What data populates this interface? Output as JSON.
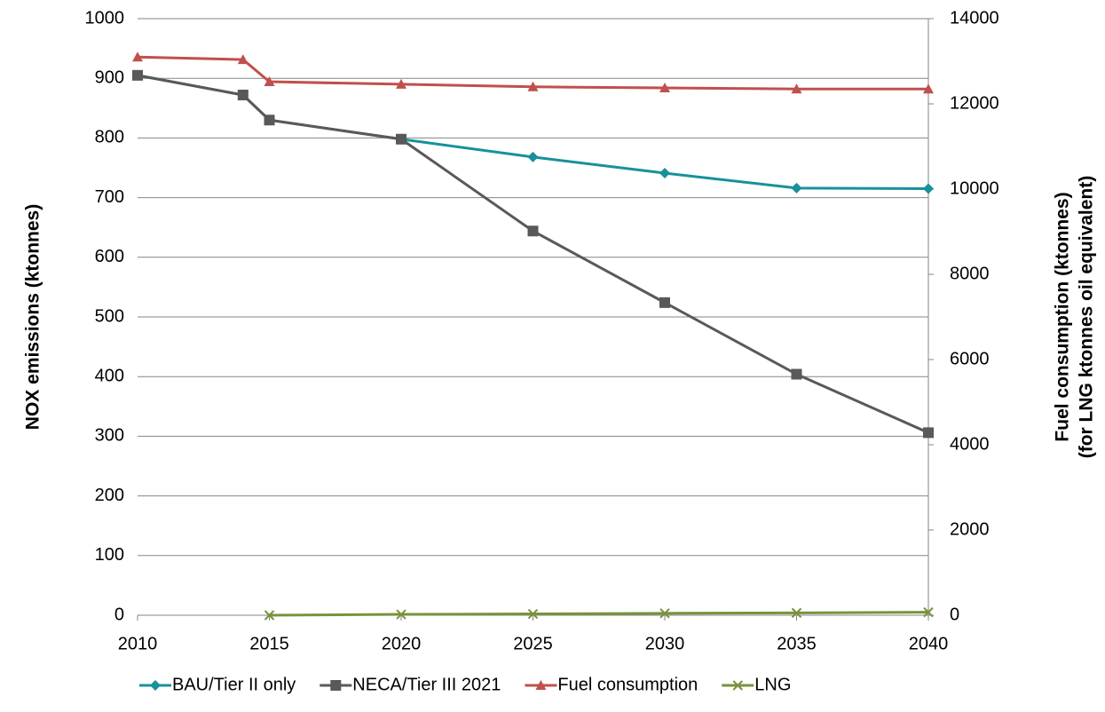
{
  "chart_data": {
    "type": "line",
    "x": [
      2010,
      2014,
      2015,
      2020,
      2025,
      2030,
      2035,
      2040
    ],
    "xlim": [
      2010,
      2040
    ],
    "xticks": [
      2010,
      2015,
      2020,
      2025,
      2030,
      2035,
      2040
    ],
    "ylim": [
      0,
      1000
    ],
    "yticks": [
      0,
      100,
      200,
      300,
      400,
      500,
      600,
      700,
      800,
      900,
      1000
    ],
    "y2lim": [
      0,
      14000
    ],
    "y2ticks": [
      0,
      2000,
      4000,
      6000,
      8000,
      10000,
      12000,
      14000
    ],
    "ylabel": "NOX emissions (ktonnes)",
    "y2label": [
      "Fuel consumption (ktonnes)",
      "(for LNG ktonnes oil equivalent)"
    ],
    "grid": true,
    "legend": "bottom",
    "series": [
      {
        "name": "BAU/Tier II only",
        "color": "#17919b",
        "marker": "diamond",
        "values": [
          905,
          872,
          830,
          798,
          768,
          741,
          716,
          715
        ]
      },
      {
        "name": "NECA/Tier III 2021",
        "color": "#595959",
        "marker": "square",
        "values": [
          905,
          872,
          830,
          798,
          644,
          524,
          404,
          306
        ]
      },
      {
        "name": "Fuel consumption",
        "color": "#c0504d",
        "marker": "triangle",
        "axis": "y2",
        "values": [
          13100,
          13040,
          12520,
          12460,
          12400,
          12375,
          12350,
          12350
        ]
      },
      {
        "name": "LNG",
        "color": "#77933c",
        "marker": "x",
        "axis": "y2",
        "values": [
          null,
          null,
          0,
          20,
          30,
          45,
          55,
          70
        ]
      }
    ]
  }
}
